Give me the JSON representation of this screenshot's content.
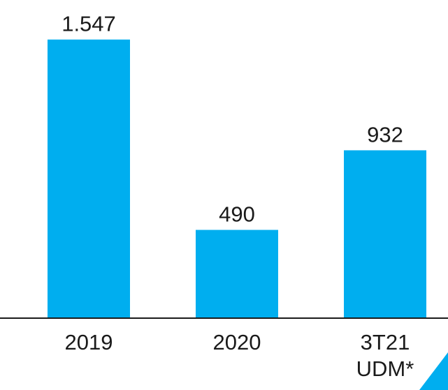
{
  "chart_data": {
    "type": "bar",
    "categories": [
      "2019",
      "2020",
      "3T21 UDM*"
    ],
    "values": [
      1547,
      490,
      932
    ],
    "value_labels": [
      "1.547",
      "490",
      "932"
    ],
    "color": "#00aeef",
    "ylim": [
      0,
      1600
    ]
  }
}
